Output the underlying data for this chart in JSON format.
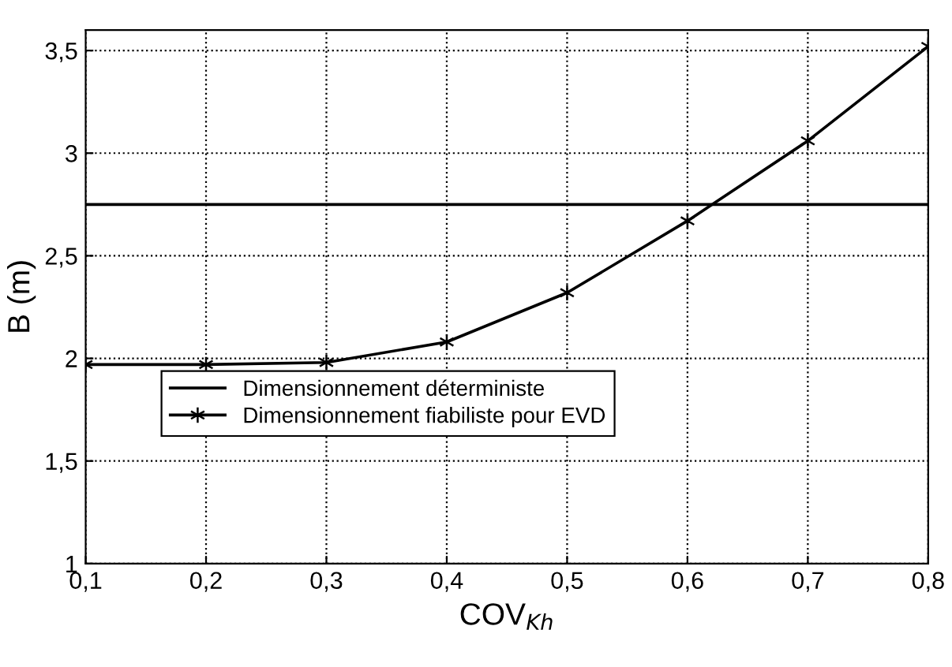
{
  "chart_data": {
    "type": "line",
    "xlabel": "COV$_{Kh}$",
    "ylabel": "B (m)",
    "x": [
      0.1,
      0.2,
      0.3,
      0.4,
      0.5,
      0.6,
      0.7,
      0.8
    ],
    "series": [
      {
        "name": "Dimensionnement déterministe",
        "color": "#000000",
        "values": [
          2.75,
          2.75,
          2.75,
          2.75,
          2.75,
          2.75,
          2.75,
          2.75
        ],
        "marker": "none"
      },
      {
        "name": "Dimensionnement fiabiliste pour EVD",
        "color": "#000000",
        "values": [
          1.97,
          1.97,
          1.98,
          2.08,
          2.32,
          2.67,
          3.06,
          3.52
        ],
        "marker": "cross"
      }
    ],
    "xlim": [
      0.1,
      0.8
    ],
    "ylim": [
      1,
      3.6
    ],
    "xticks": [
      {
        "value": 0.1,
        "label": "0,1"
      },
      {
        "value": 0.2,
        "label": "0,2"
      },
      {
        "value": 0.3,
        "label": "0,3"
      },
      {
        "value": 0.4,
        "label": "0,4"
      },
      {
        "value": 0.5,
        "label": "0,5"
      },
      {
        "value": 0.6,
        "label": "0,6"
      },
      {
        "value": 0.7,
        "label": "0,7"
      },
      {
        "value": 0.8,
        "label": "0,8"
      }
    ],
    "yticks": [
      1,
      {
        "value": 1.5,
        "label": "1,5"
      },
      2,
      {
        "value": 2.5,
        "label": "2,5"
      },
      3,
      {
        "value": 3.5,
        "label": "3,5"
      }
    ],
    "grid": true,
    "legend": "center left",
    "line_style": "solid"
  }
}
